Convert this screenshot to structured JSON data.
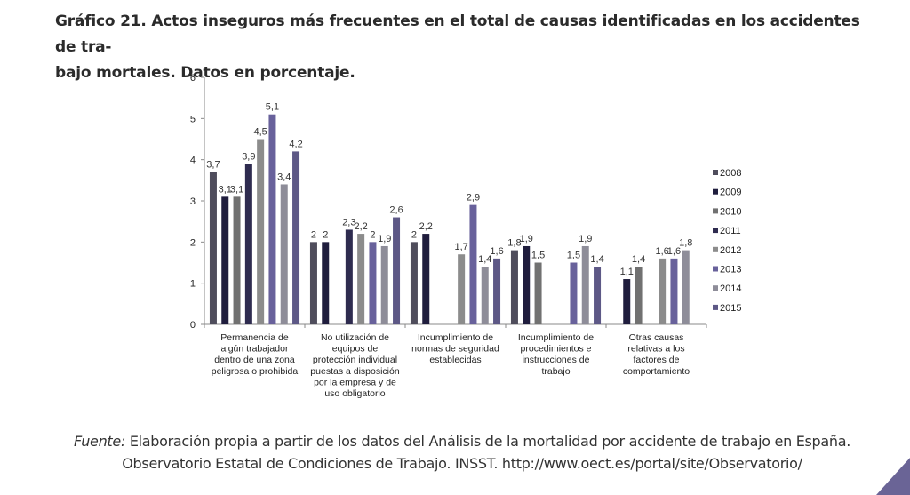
{
  "title": "Gráfico 21. Actos inseguros más frecuentes en el total de causas identificadas en los accidentes de tra-bajo mortales. Datos en porcentaje.",
  "title_line1": "Gráfico 21. Actos inseguros más frecuentes en el total de causas identificadas en los accidentes de tra-",
  "title_line2": "bajo mortales. Datos en porcentaje.",
  "source": {
    "label": "Fuente:",
    "text": " Elaboración propia a partir de los datos del Análisis de la mortalidad por accidente de trabajo en España. Observatorio Estatal de Condiciones de Trabajo. INSST. http://www.oect.es/portal/site/Observatorio/"
  },
  "chart_data": {
    "type": "bar",
    "title": "",
    "xlabel": "",
    "ylabel": "",
    "ylim": [
      0,
      6
    ],
    "yticks": [
      "0",
      "1",
      "2",
      "3",
      "4",
      "5",
      "6"
    ],
    "grid": false,
    "legend_position": "right",
    "categories": [
      [
        "Permanencia de",
        "algún trabajador",
        "dentro de una zona",
        "peligrosa o prohibida"
      ],
      [
        "No utilización de",
        "equipos de",
        "protección individual",
        "puestas a disposición",
        "por la empresa y de",
        "uso obligatorio"
      ],
      [
        "Incumplimiento de",
        "normas de seguridad",
        "establecidas"
      ],
      [
        "Incumplimiento de",
        "procedimientos e",
        "instrucciones de",
        "trabajo"
      ],
      [
        "Otras causas",
        "relativas a los",
        "factores de",
        "comportamiento"
      ]
    ],
    "series": [
      {
        "name": "2008",
        "color": "#4f4d5c",
        "values": [
          3.7,
          2,
          2,
          1.8,
          null
        ],
        "labels": [
          "3,7",
          "2",
          "2",
          "1,8",
          ""
        ]
      },
      {
        "name": "2009",
        "color": "#1f1d3d",
        "values": [
          3.1,
          2,
          2.2,
          1.9,
          1.1
        ],
        "labels": [
          "3,1",
          "2",
          "2,2",
          "1,9",
          "1,1"
        ]
      },
      {
        "name": "2010",
        "color": "#717171",
        "values": [
          3.1,
          null,
          null,
          1.5,
          1.4
        ],
        "labels": [
          "3,1",
          "",
          "",
          "1,5",
          "1,4"
        ]
      },
      {
        "name": "2011",
        "color": "#2e2b4f",
        "values": [
          3.9,
          2.3,
          null,
          null,
          null
        ],
        "labels": [
          "3,9",
          "2,3",
          "",
          "",
          ""
        ]
      },
      {
        "name": "2012",
        "color": "#8c8c8c",
        "values": [
          4.5,
          2.2,
          1.7,
          null,
          1.6
        ],
        "labels": [
          "4,5",
          "2,2",
          "1,7",
          "",
          "1,6"
        ]
      },
      {
        "name": "2013",
        "color": "#68619b",
        "values": [
          5.1,
          2,
          2.9,
          1.5,
          1.6
        ],
        "labels": [
          "5,1",
          "2",
          "2,9",
          "1,5",
          "1,6"
        ]
      },
      {
        "name": "2014",
        "color": "#8e8d99",
        "values": [
          3.4,
          1.9,
          1.4,
          1.9,
          1.8
        ],
        "labels": [
          "3,4",
          "1,9",
          "1,4",
          "1,9",
          "1,8"
        ]
      },
      {
        "name": "2015",
        "color": "#5d5886",
        "values": [
          4.2,
          2.6,
          1.6,
          1.4,
          null
        ],
        "labels": [
          "4,2",
          "2,6",
          "1,6",
          "1,4",
          ""
        ]
      }
    ]
  },
  "decor": {
    "corner_color": "#6a6496"
  }
}
